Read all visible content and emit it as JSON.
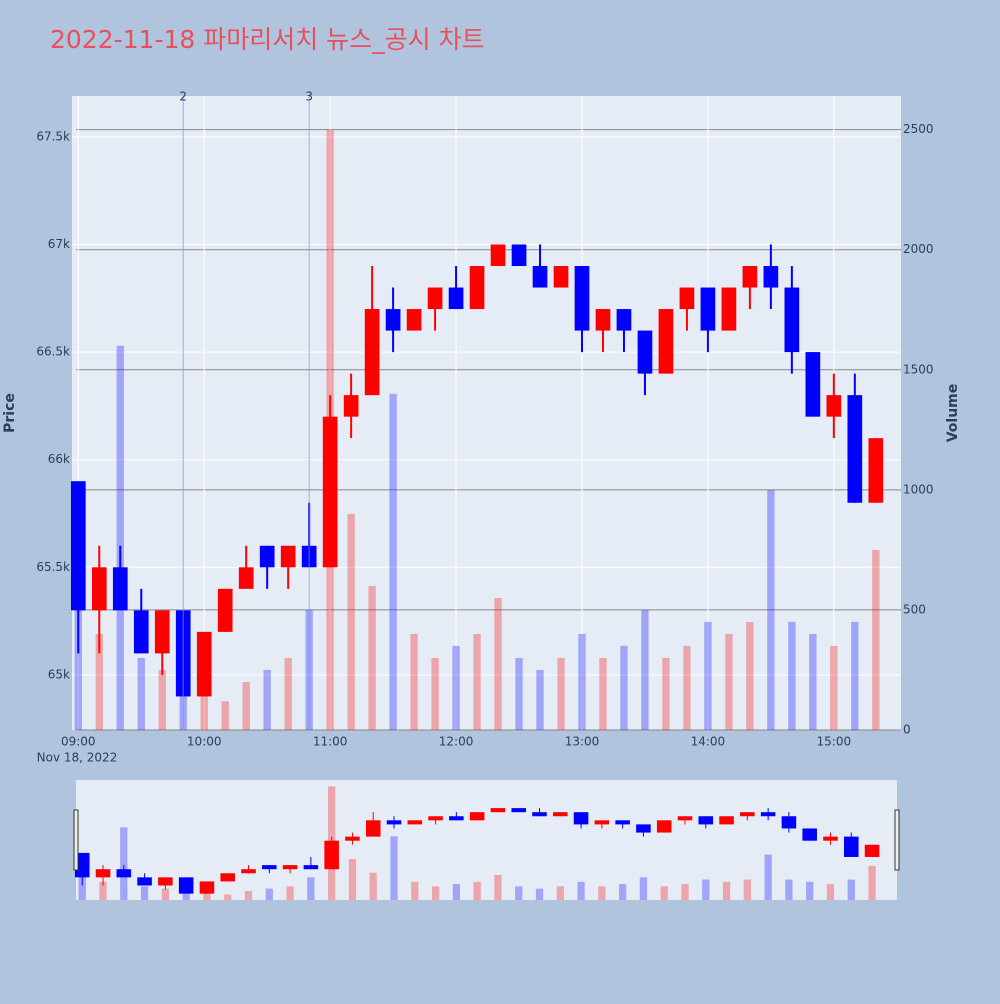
{
  "chart_data": {
    "type": "candlestick",
    "title": "2022-11-18 파마리서치 뉴스_공시 차트",
    "y_label": "Price",
    "y2_label": "Volume",
    "x_date_label": "Nov 18, 2022",
    "increasing_color": "#ff0000",
    "decreasing_color": "#0000ff",
    "x": [
      "2022-11-18 09:00",
      "2022-11-18 09:10",
      "2022-11-18 09:20",
      "2022-11-18 09:30",
      "2022-11-18 09:40",
      "2022-11-18 09:50",
      "2022-11-18 10:00",
      "2022-11-18 10:10",
      "2022-11-18 10:20",
      "2022-11-18 10:30",
      "2022-11-18 10:40",
      "2022-11-18 10:50",
      "2022-11-18 11:00",
      "2022-11-18 11:10",
      "2022-11-18 11:20",
      "2022-11-18 11:30",
      "2022-11-18 11:40",
      "2022-11-18 11:50",
      "2022-11-18 12:00",
      "2022-11-18 12:10",
      "2022-11-18 12:20",
      "2022-11-18 12:30",
      "2022-11-18 12:40",
      "2022-11-18 12:50",
      "2022-11-18 13:00",
      "2022-11-18 13:10",
      "2022-11-18 13:20",
      "2022-11-18 13:30",
      "2022-11-18 13:40",
      "2022-11-18 13:50",
      "2022-11-18 14:00",
      "2022-11-18 14:10",
      "2022-11-18 14:20",
      "2022-11-18 14:30",
      "2022-11-18 14:40",
      "2022-11-18 14:50",
      "2022-11-18 15:00",
      "2022-11-18 15:10",
      "2022-11-18 15:20"
    ],
    "open": [
      65900,
      65300,
      65500,
      65300,
      65100,
      65300,
      64900,
      65200,
      65400,
      65600,
      65500,
      65600,
      65500,
      66200,
      66300,
      66700,
      66600,
      66700,
      66800,
      66700,
      66900,
      67000,
      66900,
      66800,
      66900,
      66600,
      66700,
      66600,
      66400,
      66700,
      66800,
      66600,
      66800,
      66900,
      66800,
      66500,
      66200,
      66300,
      65800
    ],
    "high": [
      65900,
      65600,
      65600,
      65400,
      65300,
      65300,
      65200,
      65400,
      65600,
      65600,
      65600,
      65800,
      66300,
      66400,
      66900,
      66800,
      66700,
      66800,
      66900,
      66900,
      67000,
      67000,
      67000,
      66900,
      66900,
      66700,
      66700,
      66600,
      66700,
      66800,
      66800,
      66800,
      66900,
      67000,
      66900,
      66500,
      66400,
      66400,
      66100
    ],
    "low": [
      65100,
      65100,
      65300,
      65100,
      65000,
      64900,
      64900,
      65200,
      65400,
      65400,
      65400,
      65500,
      65500,
      66100,
      66300,
      66500,
      66600,
      66600,
      66700,
      66700,
      66900,
      66900,
      66800,
      66800,
      66500,
      66500,
      66500,
      66300,
      66400,
      66600,
      66500,
      66600,
      66700,
      66700,
      66400,
      66200,
      66100,
      65800,
      65800
    ],
    "close": [
      65300,
      65500,
      65300,
      65100,
      65300,
      64900,
      65200,
      65400,
      65500,
      65500,
      65600,
      65500,
      66200,
      66300,
      66700,
      66600,
      66700,
      66800,
      66700,
      66900,
      67000,
      66900,
      66800,
      66900,
      66600,
      66700,
      66600,
      66400,
      66700,
      66800,
      66600,
      66800,
      66900,
      66800,
      66500,
      66200,
      66300,
      65800,
      66100
    ],
    "volume": [
      600,
      400,
      1600,
      300,
      250,
      200,
      150,
      120,
      200,
      250,
      300,
      500,
      2500,
      900,
      600,
      1400,
      400,
      300,
      350,
      400,
      550,
      300,
      250,
      300,
      400,
      300,
      350,
      500,
      300,
      350,
      450,
      400,
      450,
      1000,
      450,
      400,
      350,
      450,
      750
    ],
    "xlim": [
      "2022-11-18 08:57",
      "2022-11-18 15:32"
    ],
    "xticks": [
      {
        "value": "2022-11-18 09:00",
        "label": "09:00"
      },
      {
        "value": "2022-11-18 10:00",
        "label": "10:00"
      },
      {
        "value": "2022-11-18 11:00",
        "label": "11:00"
      },
      {
        "value": "2022-11-18 12:00",
        "label": "12:00"
      },
      {
        "value": "2022-11-18 13:00",
        "label": "13:00"
      },
      {
        "value": "2022-11-18 14:00",
        "label": "14:00"
      },
      {
        "value": "2022-11-18 15:00",
        "label": "15:00"
      }
    ],
    "ylim": [
      64744,
      67690
    ],
    "yticks": [
      {
        "value": 65000,
        "label": "65k"
      },
      {
        "value": 65500,
        "label": "65.5k"
      },
      {
        "value": 66000,
        "label": "66k"
      },
      {
        "value": 66500,
        "label": "66.5k"
      },
      {
        "value": 67000,
        "label": "67k"
      },
      {
        "value": 67500,
        "label": "67.5k"
      }
    ],
    "y2lim": [
      0,
      2640
    ],
    "y2ticks": [
      0,
      500,
      1000,
      1500,
      2000,
      2500
    ],
    "annotations": [
      {
        "x": "2022-11-18 09:50",
        "text": "2"
      },
      {
        "x": "2022-11-18 10:50",
        "text": "3"
      }
    ],
    "grid": true
  }
}
